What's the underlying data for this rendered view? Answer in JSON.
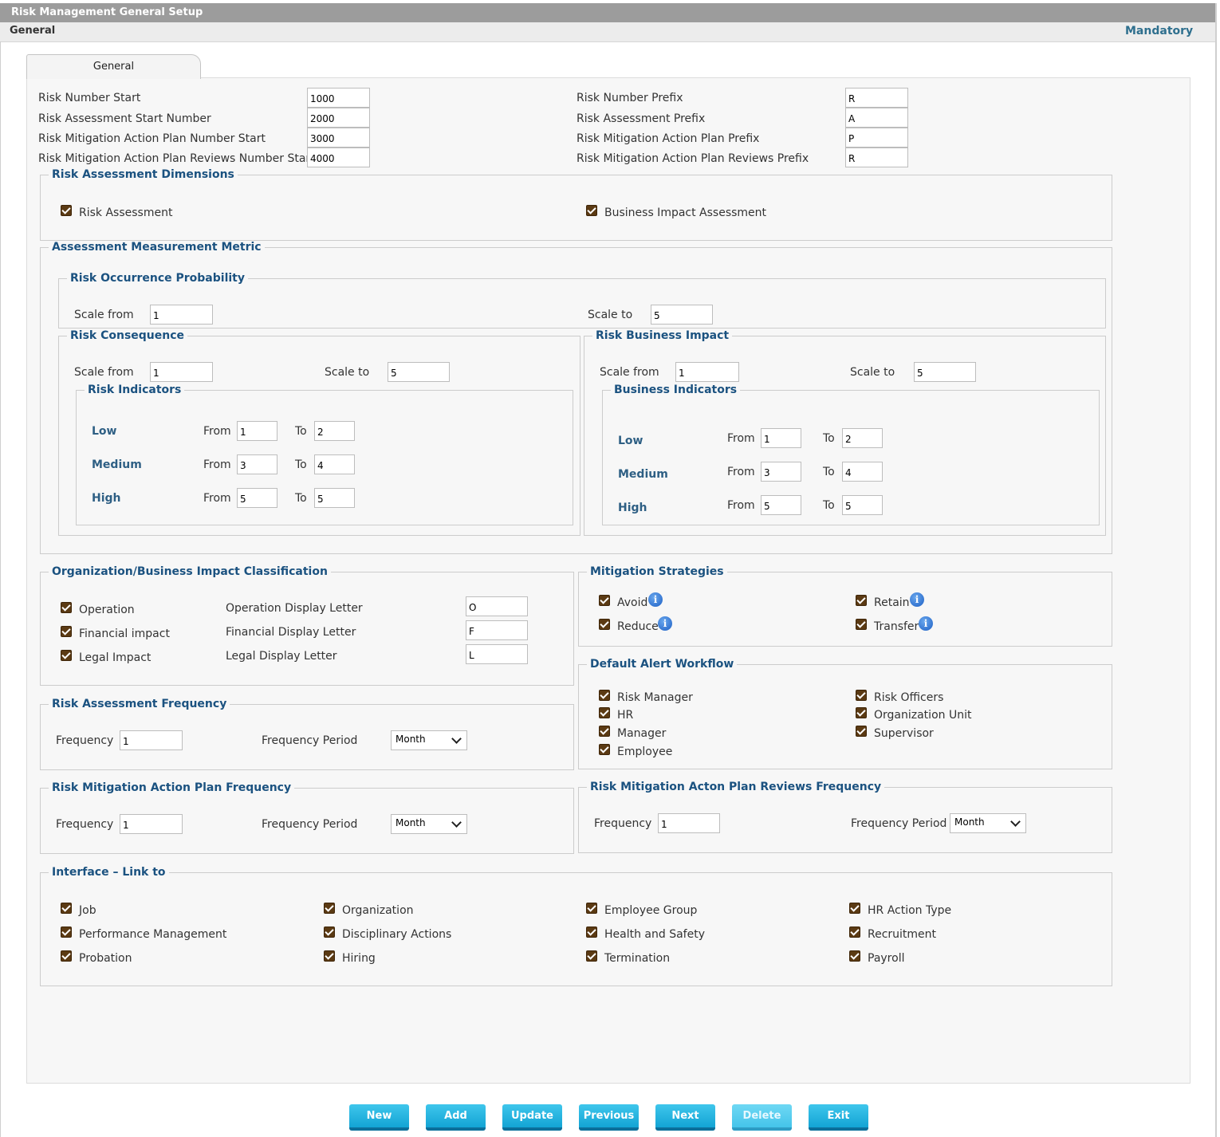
{
  "window_title": "Risk Management General Setup",
  "section_label": "General",
  "mandatory_label": "Mandatory",
  "tab_label": "General",
  "numbering": {
    "risk_number_start": {
      "label": "Risk Number Start",
      "value": "1000"
    },
    "risk_assessment_start": {
      "label": "Risk Assessment Start Number",
      "value": "2000"
    },
    "mitigation_plan_start": {
      "label": "Risk Mitigation Action Plan Number Start",
      "value": "3000"
    },
    "mitigation_reviews_start": {
      "label": "Risk Mitigation Action Plan Reviews Number Start",
      "value": "4000"
    },
    "risk_number_prefix": {
      "label": "Risk Number Prefix",
      "value": "R"
    },
    "risk_assessment_prefix": {
      "label": "Risk Assessment Prefix",
      "value": "A"
    },
    "mitigation_plan_prefix": {
      "label": "Risk Mitigation Action Plan Prefix",
      "value": "P"
    },
    "mitigation_reviews_prefix": {
      "label": "Risk Mitigation Action Plan Reviews Prefix",
      "value": "R"
    }
  },
  "dimensions": {
    "legend": "Risk Assessment Dimensions",
    "risk_assessment": "Risk Assessment",
    "business_impact_assessment": "Business Impact Assessment"
  },
  "metric": {
    "legend": "Assessment Measurement Metric",
    "probability": {
      "legend": "Risk Occurrence Probability",
      "scale_from_label": "Scale from",
      "scale_from": "1",
      "scale_to_label": "Scale to",
      "scale_to": "5"
    },
    "consequence": {
      "legend": "Risk Consequence",
      "scale_from_label": "Scale from",
      "scale_from": "1",
      "scale_to_label": "Scale to",
      "scale_to": "5",
      "indicators": {
        "legend": "Risk Indicators",
        "rows": [
          {
            "level": "Low",
            "from_label": "From",
            "from": "1",
            "to_label": "To",
            "to": "2"
          },
          {
            "level": "Medium",
            "from_label": "From",
            "from": "3",
            "to_label": "To",
            "to": "4"
          },
          {
            "level": "High",
            "from_label": "From",
            "from": "5",
            "to_label": "To",
            "to": "5"
          }
        ]
      }
    },
    "business_impact": {
      "legend": "Risk Business Impact",
      "scale_from_label": "Scale from",
      "scale_from": "1",
      "scale_to_label": "Scale to",
      "scale_to": "5",
      "indicators": {
        "legend": "Business Indicators",
        "rows": [
          {
            "level": "Low",
            "from_label": "From",
            "from": "1",
            "to_label": "To",
            "to": "2"
          },
          {
            "level": "Medium",
            "from_label": "From",
            "from": "3",
            "to_label": "To",
            "to": "4"
          },
          {
            "level": "High",
            "from_label": "From",
            "from": "5",
            "to_label": "To",
            "to": "5"
          }
        ]
      }
    }
  },
  "classification": {
    "legend": "Organization/Business Impact Classification",
    "rows": [
      {
        "check_label": "Operation",
        "letter_label": "Operation Display Letter",
        "letter": "O"
      },
      {
        "check_label": "Financial impact",
        "letter_label": "Financial Display Letter",
        "letter": "F"
      },
      {
        "check_label": "Legal Impact",
        "letter_label": "Legal Display Letter",
        "letter": "L"
      }
    ]
  },
  "mitigation": {
    "legend": "Mitigation Strategies",
    "avoid": "Avoid",
    "retain": "Retain",
    "reduce": "Reduce",
    "transfer": "Transfer",
    "info_icon": "i"
  },
  "alert": {
    "legend": "Default Alert Workflow",
    "risk_manager": "Risk Manager",
    "hr": "HR",
    "manager": "Manager",
    "employee": "Employee",
    "risk_officers": "Risk Officers",
    "organization_unit": "Organization Unit",
    "supervisor": "Supervisor"
  },
  "assessment_frequency": {
    "legend": "Risk Assessment Frequency",
    "frequency_label": "Frequency",
    "frequency": "1",
    "period_label": "Frequency Period",
    "period": "Month"
  },
  "plan_frequency": {
    "legend": "Risk Mitigation Action Plan Frequency",
    "frequency_label": "Frequency",
    "frequency": "1",
    "period_label": "Frequency Period",
    "period": "Month"
  },
  "reviews_frequency": {
    "legend": "Risk Mitigation Acton Plan Reviews Frequency",
    "frequency_label": "Frequency",
    "frequency": "1",
    "period_label": "Frequency Period",
    "period": "Month"
  },
  "interface": {
    "legend": "Interface – Link to",
    "job": "Job",
    "organization": "Organization",
    "employee_group": "Employee Group",
    "hr_action_type": "HR Action Type",
    "performance_management": "Performance Management",
    "disciplinary_actions": "Disciplinary Actions",
    "health_and_safety": "Health and Safety",
    "recruitment": "Recruitment",
    "probation": "Probation",
    "hiring": "Hiring",
    "termination": "Termination",
    "payroll": "Payroll"
  },
  "buttons": {
    "new": "New",
    "add": "Add",
    "update": "Update",
    "previous": "Previous",
    "next": "Next",
    "delete": "Delete",
    "exit": "Exit"
  },
  "colors": {
    "legend": "#1b5280",
    "checkbox": "#5b3a13",
    "button": "#13a4d4",
    "titlebar": "#9c9c9c",
    "mandatory": "#2e6f8e"
  }
}
